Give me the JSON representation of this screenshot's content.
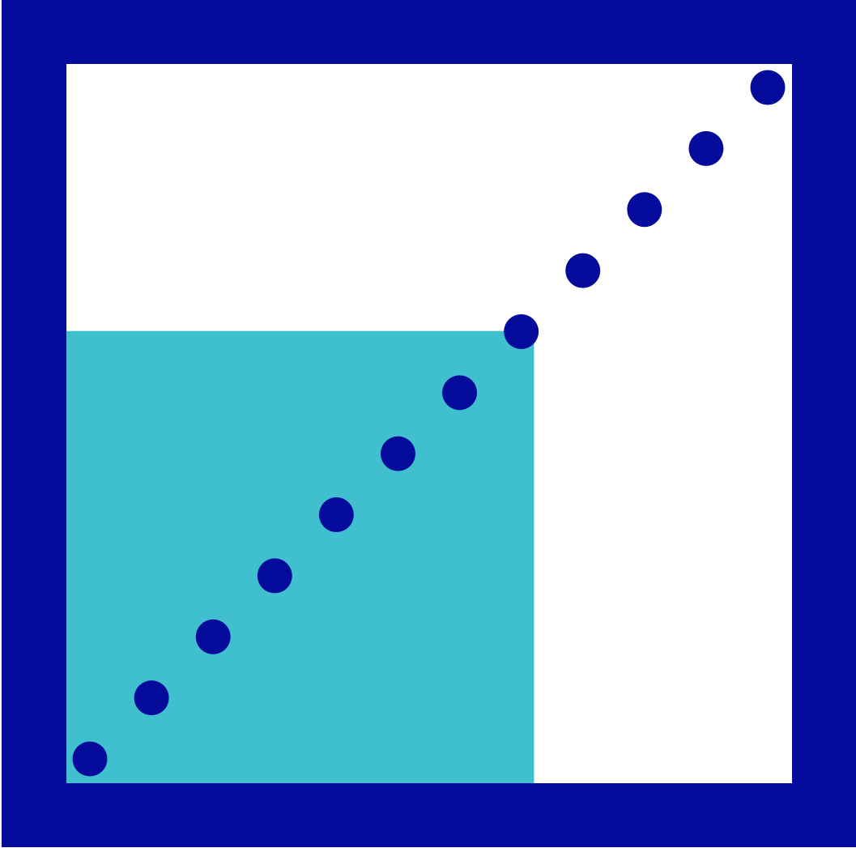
{
  "icon": {
    "name": "dotted-diagonal-progress-icon",
    "colors": {
      "frame": "#050c9c",
      "background": "#ffffff",
      "fill": "#40c0cf",
      "dots": "#050c9c"
    },
    "dot_count": 12,
    "filled_fraction": 0.64
  }
}
